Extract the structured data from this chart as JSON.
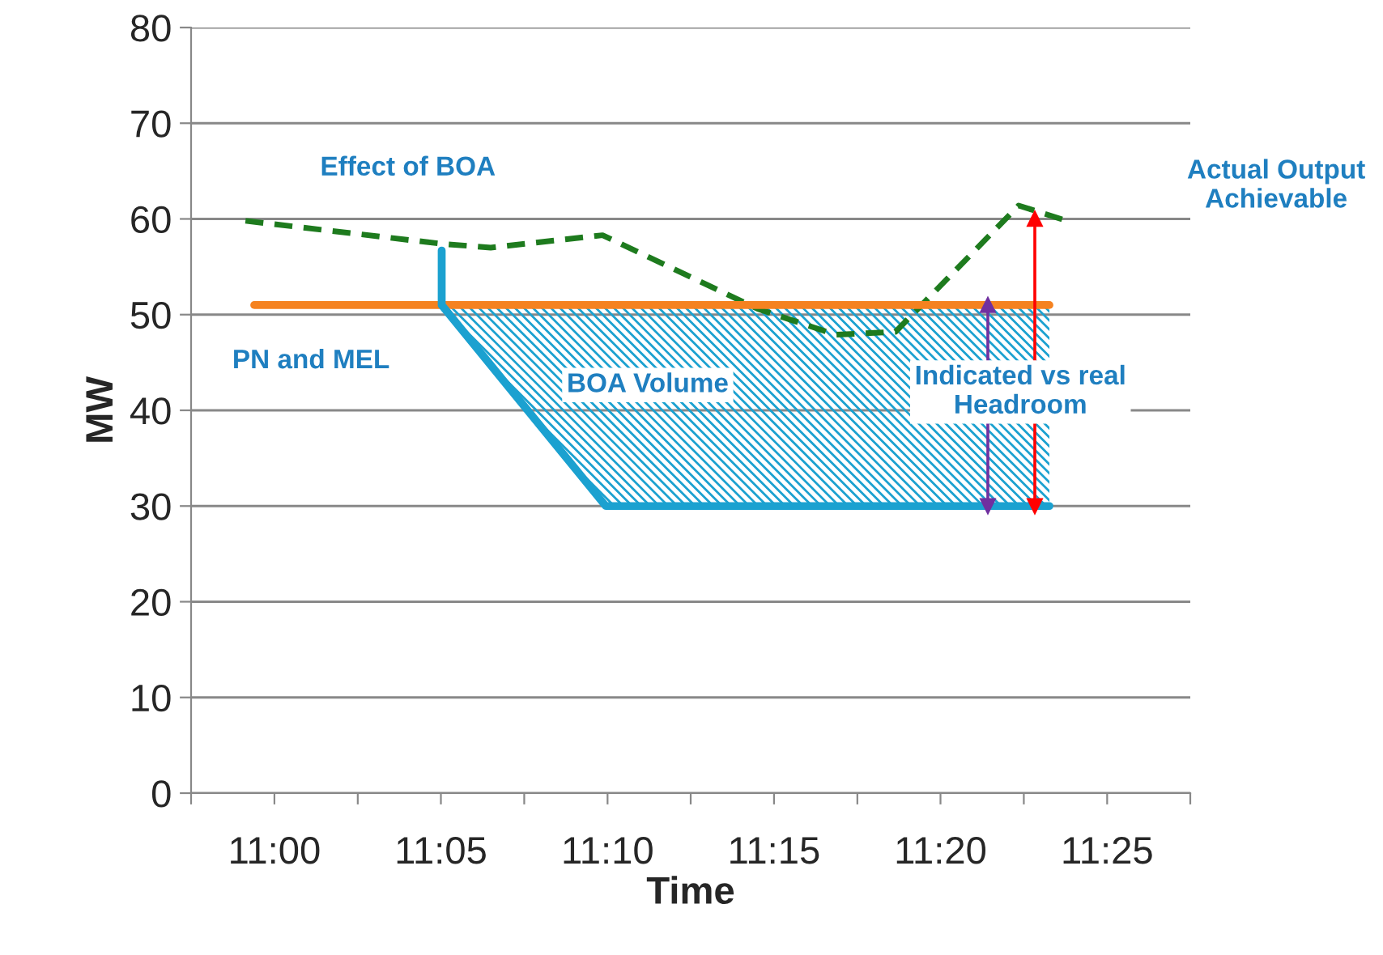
{
  "chart_data": {
    "type": "line",
    "xlabel": "Time",
    "ylabel": "MW",
    "xlim": [
      10.9583,
      11.4583
    ],
    "ylim": [
      0,
      80
    ],
    "yticks": [
      0,
      10,
      20,
      30,
      40,
      50,
      60,
      70,
      80
    ],
    "xticks": [
      {
        "value": 10.9583,
        "label": null
      },
      {
        "value": 11.0,
        "label": "11:00"
      },
      {
        "value": 11.0417,
        "label": null
      },
      {
        "value": 11.0833,
        "label": "11:05"
      },
      {
        "value": 11.125,
        "label": null
      },
      {
        "value": 11.1667,
        "label": "11:10"
      },
      {
        "value": 11.2083,
        "label": null
      },
      {
        "value": 11.25,
        "label": "11:15"
      },
      {
        "value": 11.2917,
        "label": null
      },
      {
        "value": 11.3333,
        "label": "11:20"
      },
      {
        "value": 11.375,
        "label": null
      },
      {
        "value": 11.4167,
        "label": "11:25"
      },
      {
        "value": 11.4583,
        "label": null
      }
    ],
    "grid": "y",
    "series": [
      {
        "color": "#1e7b1e",
        "line_style": "dashed",
        "x": [
          10.9855,
          11.0837,
          11.1082,
          11.1642,
          11.2419,
          11.2808,
          11.3108,
          11.3724,
          11.3951
        ],
        "values": [
          59.8,
          57.4,
          57.0,
          58.3,
          50.6,
          47.9,
          48.2,
          61.4,
          59.9
        ]
      },
      {
        "color": "#f58220",
        "x": [
          10.9899,
          11.3878
        ],
        "values": [
          51,
          51
        ]
      },
      {
        "color": "#1ba1d0",
        "x": [
          11.0837,
          11.0837,
          11.1658,
          11.3878
        ],
        "values": [
          56.7,
          51,
          30,
          30
        ],
        "lower": [
          null,
          51,
          30,
          30
        ],
        "upper": [
          null,
          51,
          51,
          51
        ]
      },
      {
        "color": "#7030a0",
        "marker": "triangle",
        "x": [
          11.357,
          11.357
        ],
        "values": [
          51,
          30
        ]
      },
      {
        "color": "#ff0000",
        "marker": "triangle",
        "x": [
          11.3805,
          11.3805
        ],
        "values": [
          30,
          60
        ]
      }
    ],
    "annotations": [
      "Effect of BOA",
      "PN and MEL",
      "BOA Volume",
      "Indicated vs real\nHeadroom",
      "Actual Output\nAchievable"
    ]
  }
}
